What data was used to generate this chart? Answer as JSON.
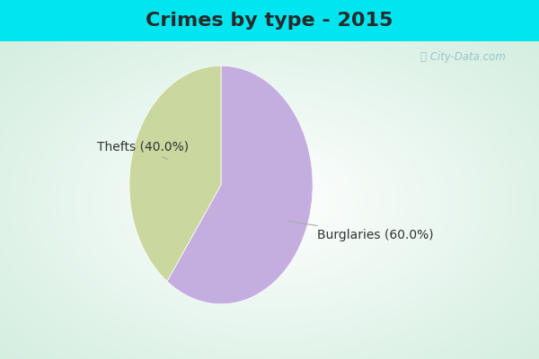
{
  "title": "Crimes by type - 2015",
  "slices": [
    {
      "label": "Burglaries (60.0%)",
      "value": 60.0,
      "color": "#c4aee0"
    },
    {
      "label": "Thefts (40.0%)",
      "value": 40.0,
      "color": "#cad8a0"
    }
  ],
  "background_cyan": "#00e5f0",
  "background_green": "#d0eedd",
  "title_fontsize": 16,
  "title_color": "#2a2a2a",
  "label_fontsize": 10,
  "watermark": "ⓘ City-Data.com",
  "startangle": 90,
  "title_bar_height": 0.115
}
